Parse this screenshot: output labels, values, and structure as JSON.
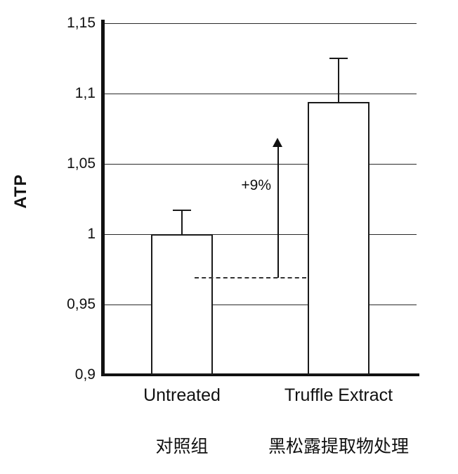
{
  "chart_data": {
    "type": "bar",
    "title": "",
    "xlabel": "",
    "ylabel": "ATP",
    "ylim": [
      0.9,
      1.15
    ],
    "grid": true,
    "legend": "none",
    "bar_fill": "#ffffff",
    "bar_border": "#1a1a1a",
    "yticks": [
      {
        "value": 1.15,
        "label": "1,15"
      },
      {
        "value": 1.1,
        "label": "1,1"
      },
      {
        "value": 1.05,
        "label": "1,05"
      },
      {
        "value": 1.0,
        "label": "1"
      },
      {
        "value": 0.95,
        "label": "0,95"
      },
      {
        "value": 0.9,
        "label": "0,9"
      }
    ],
    "categories": [
      {
        "label_en": "Untreated",
        "label_zh": "对照组",
        "value": 1.0,
        "error_top": 1.017
      },
      {
        "label_en": "Truffle Extract",
        "label_zh": "黑松露提取物处理",
        "value": 1.094,
        "error_top": 1.125
      }
    ],
    "annotation": {
      "text": "+9%",
      "baseline_value": 0.969,
      "arrow_top_value": 1.063
    }
  }
}
